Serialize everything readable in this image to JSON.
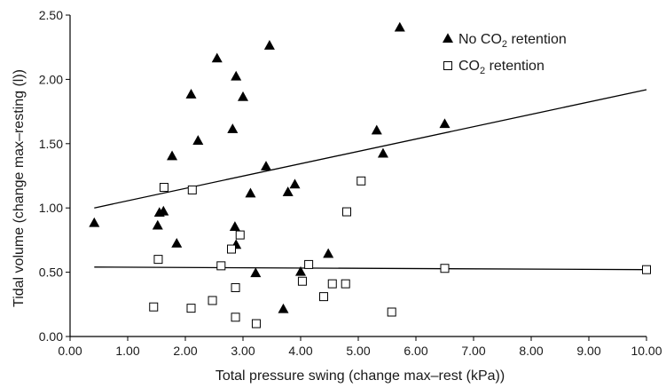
{
  "chart_data": {
    "type": "scatter",
    "xlabel": "Total pressure swing (change max–rest (kPa))",
    "ylabel": "Tidal volume (change max–resting (l))",
    "xlim": [
      0,
      10
    ],
    "ylim": [
      0,
      2.5
    ],
    "x_ticks": [
      "0.00",
      "1.00",
      "2.00",
      "3.00",
      "4.00",
      "5.00",
      "6.00",
      "7.00",
      "8.00",
      "9.00",
      "10.00"
    ],
    "y_ticks": [
      "0.00",
      "0.50",
      "1.00",
      "1.50",
      "2.00",
      "2.50"
    ],
    "grid": false,
    "legend_position": "top-right",
    "series": [
      {
        "name": "No CO2 retention",
        "legend_pre": "No CO",
        "legend_sub": "2",
        "legend_post": " retention",
        "marker": "filled-triangle",
        "color": "#000000",
        "points": [
          [
            0.42,
            0.88
          ],
          [
            1.52,
            0.86
          ],
          [
            1.55,
            0.96
          ],
          [
            1.62,
            0.97
          ],
          [
            1.77,
            1.4
          ],
          [
            1.85,
            0.72
          ],
          [
            2.1,
            1.88
          ],
          [
            2.22,
            1.52
          ],
          [
            2.55,
            2.16
          ],
          [
            2.82,
            1.61
          ],
          [
            2.86,
            0.85
          ],
          [
            2.88,
            2.02
          ],
          [
            2.88,
            0.71
          ],
          [
            3.0,
            1.86
          ],
          [
            3.13,
            1.11
          ],
          [
            3.22,
            0.49
          ],
          [
            3.4,
            1.32
          ],
          [
            3.46,
            2.26
          ],
          [
            3.7,
            0.21
          ],
          [
            3.78,
            1.12
          ],
          [
            3.9,
            1.18
          ],
          [
            4.0,
            0.5
          ],
          [
            4.48,
            0.64
          ],
          [
            5.32,
            1.6
          ],
          [
            5.43,
            1.42
          ],
          [
            5.72,
            2.4
          ],
          [
            6.5,
            1.65
          ]
        ],
        "trend": [
          [
            0.42,
            1.0
          ],
          [
            10.0,
            1.92
          ]
        ]
      },
      {
        "name": "CO2 retention",
        "legend_pre": "CO",
        "legend_sub": "2",
        "legend_post": " retention",
        "marker": "open-square",
        "color": "#000000",
        "points": [
          [
            1.45,
            0.23
          ],
          [
            1.53,
            0.6
          ],
          [
            1.63,
            1.16
          ],
          [
            2.1,
            0.22
          ],
          [
            2.12,
            1.14
          ],
          [
            2.47,
            0.28
          ],
          [
            2.62,
            0.55
          ],
          [
            2.8,
            0.68
          ],
          [
            2.87,
            0.38
          ],
          [
            2.87,
            0.15
          ],
          [
            2.95,
            0.79
          ],
          [
            3.23,
            0.1
          ],
          [
            4.03,
            0.43
          ],
          [
            4.14,
            0.56
          ],
          [
            4.4,
            0.31
          ],
          [
            4.55,
            0.41
          ],
          [
            4.78,
            0.41
          ],
          [
            4.8,
            0.97
          ],
          [
            5.05,
            1.21
          ],
          [
            5.58,
            0.19
          ],
          [
            6.5,
            0.53
          ],
          [
            10.0,
            0.52
          ]
        ],
        "trend": [
          [
            0.42,
            0.54
          ],
          [
            10.0,
            0.52
          ]
        ]
      }
    ]
  }
}
